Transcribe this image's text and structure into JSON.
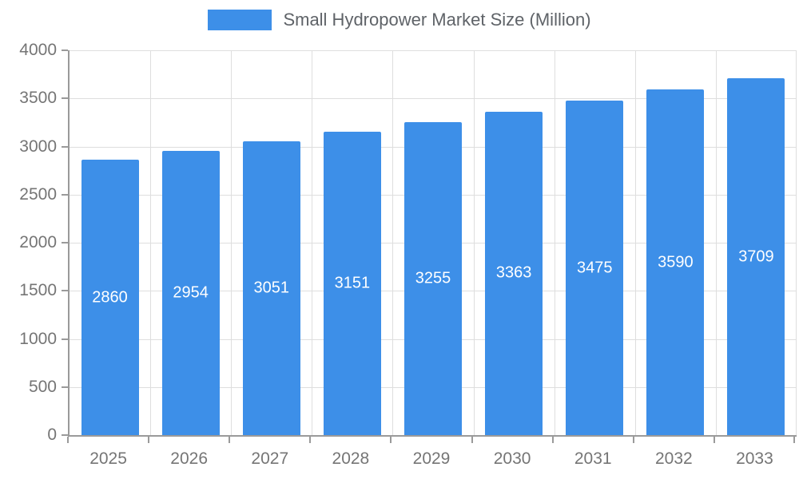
{
  "legend": {
    "label": "Small Hydropower Market Size (Million)"
  },
  "colors": {
    "bar": "#3d8fe8",
    "grid": "#dedede",
    "axis": "#9a9a9a",
    "tick_text": "#757575",
    "value_text": "#ffffff"
  },
  "chart_data": {
    "type": "bar",
    "title": "",
    "xlabel": "",
    "ylabel": "",
    "categories": [
      "2025",
      "2026",
      "2027",
      "2028",
      "2029",
      "2030",
      "2031",
      "2032",
      "2033"
    ],
    "series": [
      {
        "name": "Small Hydropower Market Size (Million)",
        "values": [
          2860,
          2954,
          3051,
          3151,
          3255,
          3363,
          3475,
          3590,
          3709
        ]
      }
    ],
    "ylim": [
      0,
      4000
    ],
    "yticks": [
      0,
      500,
      1000,
      1500,
      2000,
      2500,
      3000,
      3500,
      4000
    ],
    "grid": true,
    "legend_position": "top",
    "value_labels": "inside-middle-white"
  }
}
